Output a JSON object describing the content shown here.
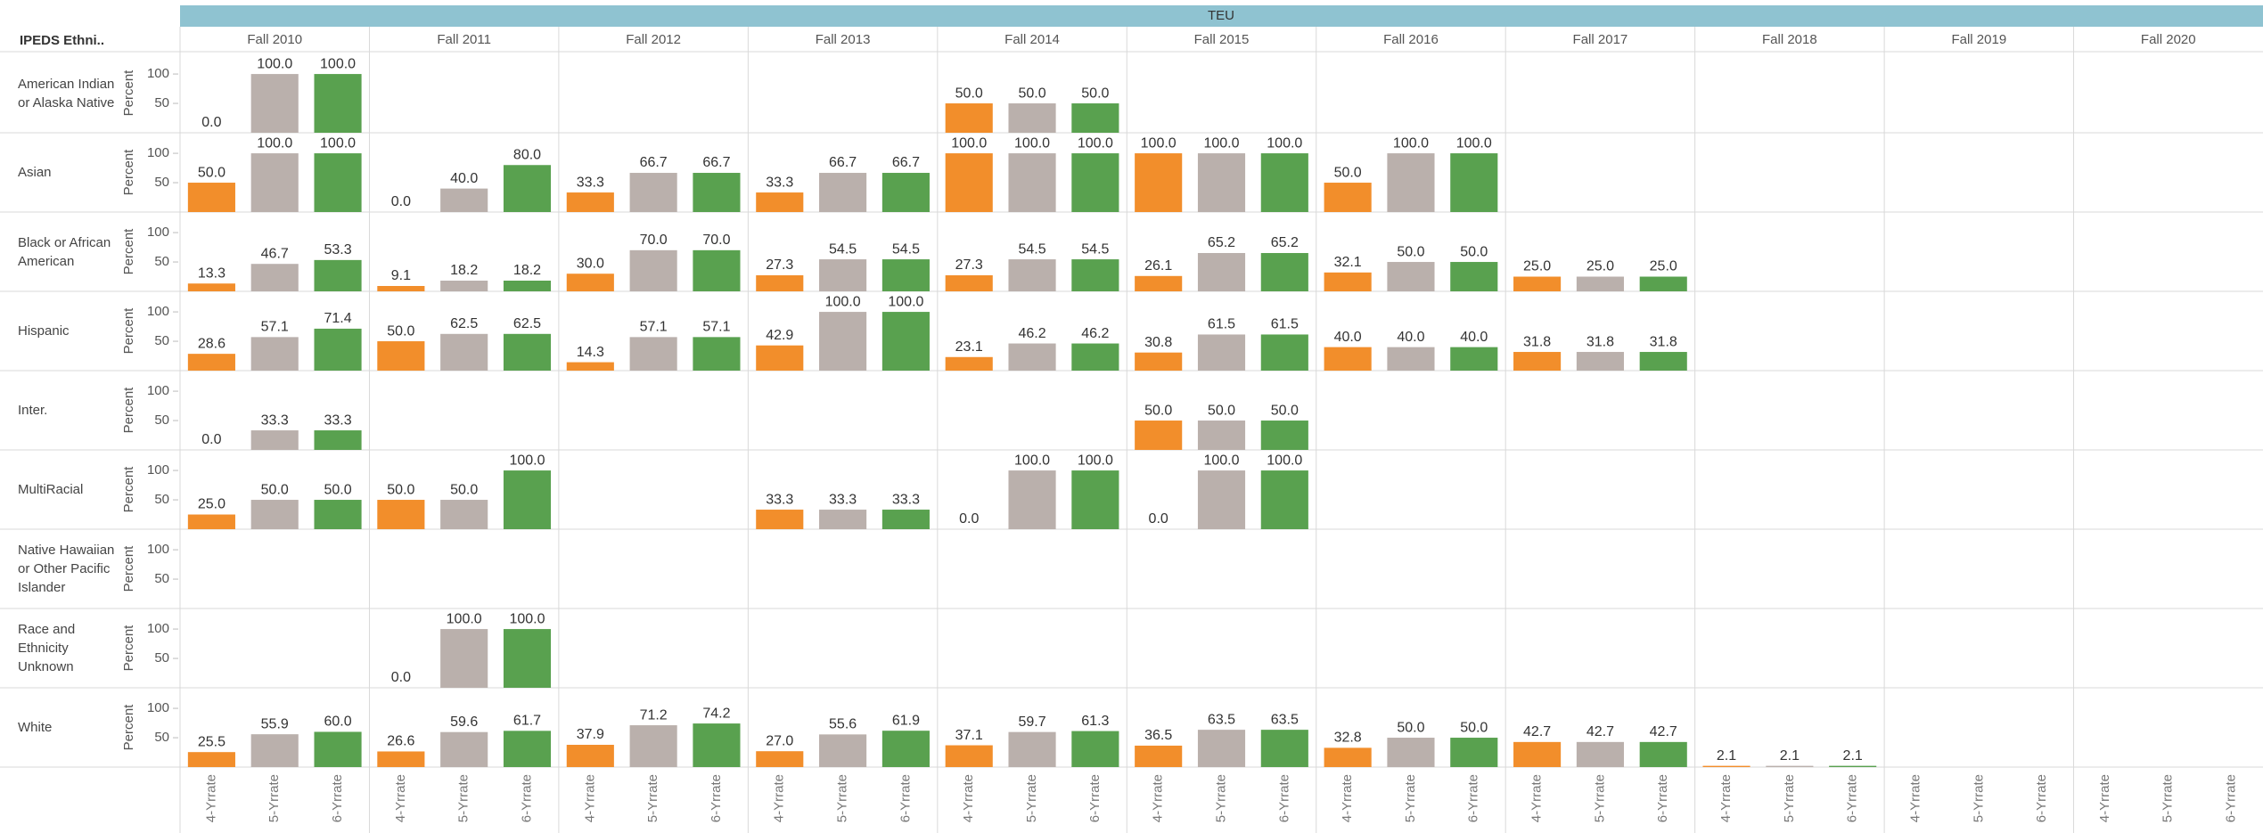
{
  "chart_data": {
    "type": "bar",
    "title": "TEU",
    "row_header": "IPEDS Ethni..",
    "y_label": "Percent",
    "ylim": [
      0,
      135
    ],
    "yticks": [
      50,
      100
    ],
    "columns": [
      "Fall 2010",
      "Fall 2011",
      "Fall 2012",
      "Fall 2013",
      "Fall 2014",
      "Fall 2015",
      "Fall 2016",
      "Fall 2017",
      "Fall 2018",
      "Fall 2019",
      "Fall 2020"
    ],
    "measures": [
      "4-Yrrate",
      "5-Yrrate",
      "6-Yrrate"
    ],
    "colors": [
      "#f28e2b",
      "#bab0ac",
      "#59a14f"
    ],
    "rows": [
      {
        "name": "American Indian or Alaska Native",
        "values": [
          [
            0,
            100,
            100
          ],
          null,
          null,
          null,
          [
            50,
            50,
            50
          ],
          null,
          null,
          null,
          null,
          null,
          null
        ],
        "value_labels": [
          [
            "0.0",
            "100.0",
            "100.0"
          ],
          null,
          null,
          null,
          [
            "50.0",
            "50.0",
            "50.0"
          ],
          null,
          null,
          null,
          null,
          null,
          null
        ]
      },
      {
        "name": "Asian",
        "values": [
          [
            50,
            100,
            100
          ],
          [
            0,
            40,
            80
          ],
          [
            33.3,
            66.7,
            66.7
          ],
          [
            33.3,
            66.7,
            66.7
          ],
          [
            100,
            100,
            100
          ],
          [
            100,
            100,
            100
          ],
          [
            50,
            100,
            100
          ],
          null,
          null,
          null,
          null
        ],
        "value_labels": [
          [
            "50.0",
            "100.0",
            "100.0"
          ],
          [
            "0.0",
            "40.0",
            "80.0"
          ],
          [
            "33.3",
            "66.7",
            "66.7"
          ],
          [
            "33.3",
            "66.7",
            "66.7"
          ],
          [
            "100.0",
            "100.0",
            "100.0"
          ],
          [
            "100.0",
            "100.0",
            "100.0"
          ],
          [
            "50.0",
            "100.0",
            "100.0"
          ],
          null,
          null,
          null,
          null
        ]
      },
      {
        "name": "Black or African American",
        "values": [
          [
            13.3,
            46.7,
            53.3
          ],
          [
            9.1,
            18.2,
            18.2
          ],
          [
            30,
            70,
            70
          ],
          [
            27.3,
            54.5,
            54.5
          ],
          [
            27.3,
            54.5,
            54.5
          ],
          [
            26.1,
            65.2,
            65.2
          ],
          [
            32.1,
            50,
            50
          ],
          [
            25,
            25,
            25
          ],
          null,
          null,
          null
        ],
        "value_labels": [
          [
            "13.3",
            "46.7",
            "53.3"
          ],
          [
            "9.1",
            "18.2",
            "18.2"
          ],
          [
            "30.0",
            "70.0",
            "70.0"
          ],
          [
            "27.3",
            "54.5",
            "54.5"
          ],
          [
            "27.3",
            "54.5",
            "54.5"
          ],
          [
            "26.1",
            "65.2",
            "65.2"
          ],
          [
            "32.1",
            "50.0",
            "50.0"
          ],
          [
            "25.0",
            "25.0",
            "25.0"
          ],
          null,
          null,
          null
        ]
      },
      {
        "name": "Hispanic",
        "values": [
          [
            28.6,
            57.1,
            71.4
          ],
          [
            50,
            62.5,
            62.5
          ],
          [
            14.3,
            57.1,
            57.1
          ],
          [
            42.9,
            100,
            100
          ],
          [
            23.1,
            46.2,
            46.2
          ],
          [
            30.8,
            61.5,
            61.5
          ],
          [
            40,
            40,
            40
          ],
          [
            31.8,
            31.8,
            31.8
          ],
          null,
          null,
          null
        ],
        "value_labels": [
          [
            "28.6",
            "57.1",
            "71.4"
          ],
          [
            "50.0",
            "62.5",
            "62.5"
          ],
          [
            "14.3",
            "57.1",
            "57.1"
          ],
          [
            "42.9",
            "100.0",
            "100.0"
          ],
          [
            "23.1",
            "46.2",
            "46.2"
          ],
          [
            "30.8",
            "61.5",
            "61.5"
          ],
          [
            "40.0",
            "40.0",
            "40.0"
          ],
          [
            "31.8",
            "31.8",
            "31.8"
          ],
          null,
          null,
          null
        ]
      },
      {
        "name": "Inter.",
        "values": [
          [
            0,
            33.3,
            33.3
          ],
          null,
          null,
          null,
          null,
          [
            50,
            50,
            50
          ],
          null,
          null,
          null,
          null,
          null
        ],
        "value_labels": [
          [
            "0.0",
            "33.3",
            "33.3"
          ],
          null,
          null,
          null,
          null,
          [
            "50.0",
            "50.0",
            "50.0"
          ],
          null,
          null,
          null,
          null,
          null
        ]
      },
      {
        "name": "MultiRacial",
        "values": [
          [
            25,
            50,
            50
          ],
          [
            50,
            50,
            100
          ],
          null,
          [
            33.3,
            33.3,
            33.3
          ],
          [
            0,
            100,
            100
          ],
          [
            0,
            100,
            100
          ],
          null,
          null,
          null,
          null,
          null
        ],
        "value_labels": [
          [
            "25.0",
            "50.0",
            "50.0"
          ],
          [
            "50.0",
            "50.0",
            "100.0"
          ],
          null,
          [
            "33.3",
            "33.3",
            "33.3"
          ],
          [
            "0.0",
            "100.0",
            "100.0"
          ],
          [
            "0.0",
            "100.0",
            "100.0"
          ],
          null,
          null,
          null,
          null,
          null
        ]
      },
      {
        "name": "Native Hawaiian or Other Pacific Islander",
        "values": [
          null,
          null,
          null,
          null,
          null,
          null,
          null,
          null,
          null,
          null,
          null
        ],
        "value_labels": [
          null,
          null,
          null,
          null,
          null,
          null,
          null,
          null,
          null,
          null,
          null
        ]
      },
      {
        "name": "Race and Ethnicity Unknown",
        "values": [
          null,
          [
            0,
            100,
            100
          ],
          null,
          null,
          null,
          null,
          null,
          null,
          null,
          null,
          null
        ],
        "value_labels": [
          null,
          [
            "0.0",
            "100.0",
            "100.0"
          ],
          null,
          null,
          null,
          null,
          null,
          null,
          null,
          null,
          null
        ]
      },
      {
        "name": "White",
        "values": [
          [
            25.5,
            55.9,
            60
          ],
          [
            26.6,
            59.6,
            61.7
          ],
          [
            37.9,
            71.2,
            74.2
          ],
          [
            27,
            55.6,
            61.9
          ],
          [
            37.1,
            59.7,
            61.3
          ],
          [
            36.5,
            63.5,
            63.5
          ],
          [
            32.8,
            50,
            50
          ],
          [
            42.7,
            42.7,
            42.7
          ],
          [
            2.1,
            2.1,
            2.1
          ],
          null,
          null
        ],
        "value_labels": [
          [
            "25.5",
            "55.9",
            "60.0"
          ],
          [
            "26.6",
            "59.6",
            "61.7"
          ],
          [
            "37.9",
            "71.2",
            "74.2"
          ],
          [
            "27.0",
            "55.6",
            "61.9"
          ],
          [
            "37.1",
            "59.7",
            "61.3"
          ],
          [
            "36.5",
            "63.5",
            "63.5"
          ],
          [
            "32.8",
            "50.0",
            "50.0"
          ],
          [
            "42.7",
            "42.7",
            "42.7"
          ],
          [
            "2.1",
            "2.1",
            "2.1"
          ],
          null,
          null
        ]
      }
    ]
  }
}
